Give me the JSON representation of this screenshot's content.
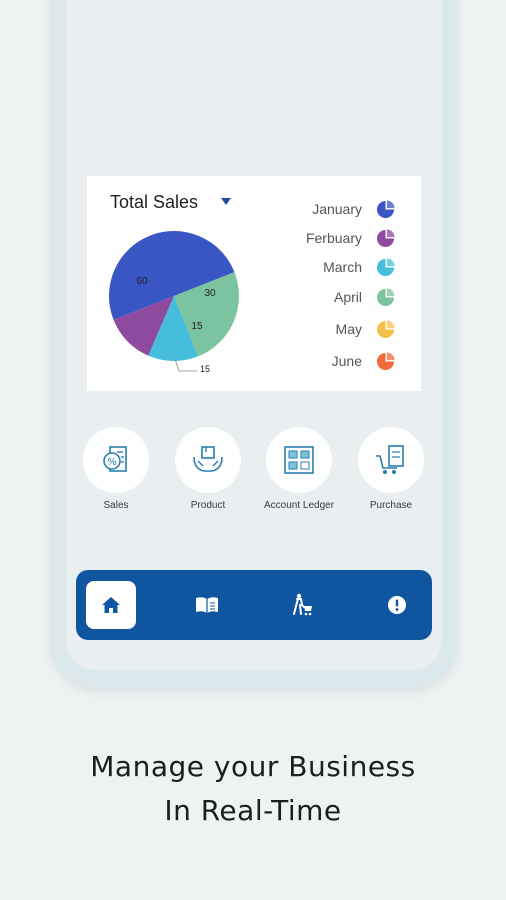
{
  "chart_card": {
    "title": "Total Sales",
    "dropdown_icon": "caret-down-icon"
  },
  "chart_data": {
    "type": "pie",
    "slices": [
      {
        "label": "60",
        "value": 60,
        "color": "#3a55c4"
      },
      {
        "label": "30",
        "value": 30,
        "color": "#7cc39f"
      },
      {
        "label": "15",
        "value": 15,
        "color": "#45bddb"
      },
      {
        "label": "15",
        "value": 15,
        "color": "#8e4a9e"
      }
    ],
    "legend": [
      {
        "label": "January",
        "color": "#3a55c4"
      },
      {
        "label": "Ferbuary",
        "color": "#8e4a9e"
      },
      {
        "label": "March",
        "color": "#45bddb"
      },
      {
        "label": "April",
        "color": "#7cc39f"
      },
      {
        "label": "May",
        "color": "#f5c04a"
      },
      {
        "label": "June",
        "color": "#ef6b3b"
      }
    ]
  },
  "quick_actions": [
    {
      "label": "Sales",
      "icon": "sales-receipt-icon"
    },
    {
      "label": "Product",
      "icon": "product-box-hands-icon"
    },
    {
      "label": "Account Ledger",
      "icon": "account-ledger-icon"
    },
    {
      "label": "Purchase",
      "icon": "purchase-cart-icon"
    }
  ],
  "bottom_nav": [
    {
      "name": "home",
      "icon": "home-icon",
      "active": true
    },
    {
      "name": "ledger",
      "icon": "book-icon",
      "active": false
    },
    {
      "name": "delivery",
      "icon": "trolley-person-icon",
      "active": false
    },
    {
      "name": "info",
      "icon": "alert-icon",
      "active": false
    }
  ],
  "headline": {
    "line1": "Manage your Business",
    "line2": "In Real-Time"
  },
  "colors": {
    "nav_bg": "#0f55a0",
    "accent": "#1f4f99",
    "page_bg": "#edf2f3"
  }
}
